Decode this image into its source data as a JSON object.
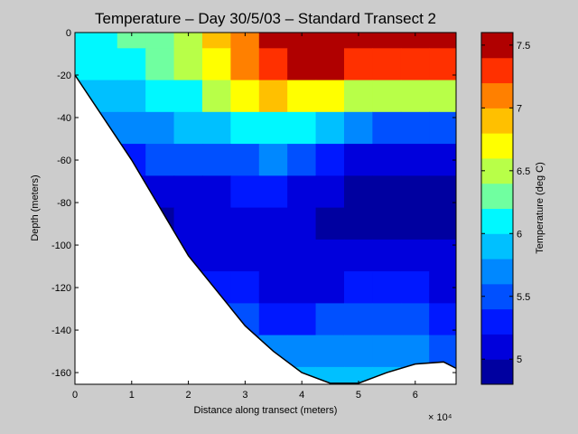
{
  "chart_data": {
    "type": "contourf",
    "title": "Temperature – Day 30/5/03 – Standard Transect 2",
    "xlabel": "Distance along transect (meters)",
    "ylabel": "Depth (meters)",
    "x_exponent": "× 10⁴",
    "colorbar_label": "Temperature (deg C)",
    "xlim": [
      0,
      67200
    ],
    "ylim": [
      -165.5,
      0
    ],
    "xticks": [
      {
        "value": 0,
        "label": "0"
      },
      {
        "value": 10000,
        "label": "1"
      },
      {
        "value": 20000,
        "label": "2"
      },
      {
        "value": 30000,
        "label": "3"
      },
      {
        "value": 40000,
        "label": "4"
      },
      {
        "value": 50000,
        "label": "5"
      },
      {
        "value": 60000,
        "label": "6"
      }
    ],
    "yticks": [
      0,
      -20,
      -40,
      -60,
      -80,
      -100,
      -120,
      -140,
      -160
    ],
    "clim": [
      4.8,
      7.6
    ],
    "cticks": [
      5,
      5.5,
      6,
      6.5,
      7,
      7.5
    ],
    "colormap": [
      "#0000a0",
      "#0000dc",
      "#0018ff",
      "#0050ff",
      "#0088ff",
      "#00c0ff",
      "#00f8ff",
      "#70ffa0",
      "#b8ff48",
      "#ffff00",
      "#ffc000",
      "#ff8000",
      "#ff3000",
      "#b00000"
    ],
    "x": [
      0,
      5000,
      10000,
      15000,
      20000,
      25000,
      30000,
      35000,
      40000,
      45000,
      50000,
      55000,
      60000,
      65000
    ],
    "depths": [
      0,
      -15,
      -30,
      -45,
      -60,
      -75,
      -90,
      -105,
      -120,
      -135,
      -150,
      -165
    ],
    "values": [
      [
        6.1,
        6.1,
        6.2,
        6.3,
        6.5,
        6.8,
        7.1,
        7.5,
        7.5,
        7.5,
        7.5,
        7.5,
        7.5,
        7.5
      ],
      [
        6.0,
        6.0,
        6.1,
        6.2,
        6.4,
        6.7,
        7.0,
        7.3,
        7.4,
        7.4,
        7.3,
        7.3,
        7.3,
        7.3
      ],
      [
        5.8,
        5.8,
        5.9,
        6.0,
        6.1,
        6.4,
        6.6,
        6.8,
        6.7,
        6.6,
        6.5,
        6.5,
        6.5,
        6.5
      ],
      [
        5.6,
        5.6,
        5.6,
        5.7,
        5.8,
        5.9,
        6.0,
        6.1,
        6.0,
        5.8,
        5.6,
        5.5,
        5.5,
        5.5
      ],
      [
        5.3,
        5.3,
        5.3,
        5.4,
        5.4,
        5.4,
        5.5,
        5.6,
        5.4,
        5.2,
        5.1,
        5.0,
        5.0,
        5.0
      ],
      [
        5.0,
        5.0,
        5.0,
        5.0,
        5.1,
        5.1,
        5.2,
        5.2,
        5.1,
        5.0,
        4.9,
        4.9,
        4.9,
        4.9
      ],
      [
        5.0,
        5.0,
        5.0,
        4.9,
        5.0,
        5.0,
        5.0,
        5.0,
        5.0,
        4.9,
        4.9,
        4.9,
        4.9,
        4.9
      ],
      [
        5.0,
        5.0,
        5.0,
        5.0,
        5.0,
        5.1,
        5.0,
        5.0,
        5.0,
        5.0,
        5.0,
        5.0,
        5.0,
        5.0
      ],
      [
        5.1,
        5.1,
        5.1,
        5.1,
        5.1,
        5.3,
        5.2,
        5.1,
        5.1,
        5.1,
        5.2,
        5.2,
        5.2,
        5.1
      ],
      [
        5.3,
        5.3,
        5.3,
        5.3,
        5.3,
        5.4,
        5.4,
        5.3,
        5.3,
        5.4,
        5.4,
        5.4,
        5.4,
        5.3
      ],
      [
        5.5,
        5.5,
        5.5,
        5.5,
        5.5,
        5.5,
        5.5,
        5.6,
        5.6,
        5.7,
        5.7,
        5.7,
        5.6,
        5.5
      ],
      [
        5.6,
        5.6,
        5.6,
        5.6,
        5.6,
        5.6,
        5.6,
        5.7,
        5.8,
        5.8,
        5.8,
        5.8,
        5.7,
        5.6
      ]
    ],
    "bottom_x": [
      0,
      10000,
      20000,
      30000,
      35000,
      40000,
      45000,
      50000,
      55000,
      60000,
      65000,
      67200
    ],
    "bottom_depth": [
      -20,
      -60,
      -105,
      -138,
      -150,
      -160,
      -165,
      -165,
      -160,
      -156,
      -155,
      -158
    ]
  }
}
